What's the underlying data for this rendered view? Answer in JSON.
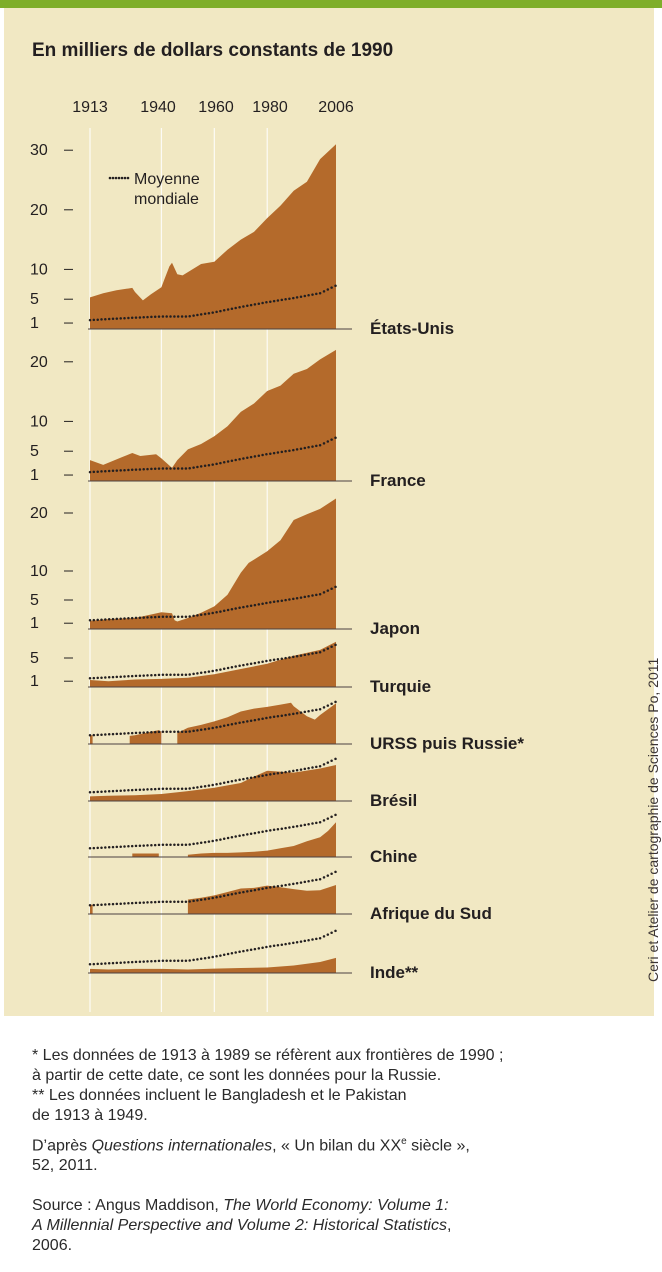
{
  "subtitle": "En milliers de dollars constants de 1990",
  "credit": "Ceri et Atelier de cartographie de Sciences Po, 2011",
  "notes": {
    "footnote1_l1": "* Les données de 1913 à 1989 se réfèrent aux frontières de 1990 ;",
    "footnote1_l2": "à partir de cette date, ce sont les données pour la Russie.",
    "footnote2_l1": "** Les données incluent le Bangladesh et le Pakistan",
    "footnote2_l2": "de 1913 à 1949.",
    "source1_a": "D’après ",
    "source1_title": "Questions internationales",
    "source1_b": ", « Un bilan du XX",
    "source1_sup": "e",
    "source1_c": " siècle »,",
    "source1_l2": "52, 2011.",
    "source2_a": "Source : Angus Maddison, ",
    "source2_title_l1": "The World Economy: Volume 1:",
    "source2_title_l2": "A Millennial Perspective and Volume 2: Historical Statistics",
    "source2_c": ",",
    "source2_l3": "2006."
  },
  "colors": {
    "area": "#b46a2b",
    "panel": "#f1e8c3",
    "accent_bar": "#7fae2a",
    "world_dots": "#231f20"
  },
  "chart_data": {
    "type": "area",
    "unit": "En milliers de dollars constants de 1990",
    "x_tick_labels": [
      "1913",
      "1940",
      "1960",
      "1980",
      "2006"
    ],
    "x_range": [
      1913,
      2006
    ],
    "world_average_label": "Moyenne mondiale",
    "world_average": {
      "x": [
        1913,
        1930,
        1940,
        1950,
        1960,
        1970,
        1980,
        1990,
        2000,
        2006
      ],
      "y": [
        1.5,
        1.9,
        2.1,
        2.1,
        2.8,
        3.7,
        4.5,
        5.2,
        6.0,
        7.3
      ]
    },
    "panels": [
      {
        "name": "États-Unis",
        "y_ticks": [
          1,
          5,
          10,
          20,
          30
        ],
        "series": [
          {
            "x": [
              1913,
              1918,
              1923,
              1929,
              1930,
              1933,
              1936,
              1940,
              1941,
              1943,
              1944,
              1946,
              1948,
              1955,
              1960,
              1965,
              1970,
              1975,
              1980,
              1985,
              1990,
              1995,
              2000,
              2006
            ],
            "y": [
              5.3,
              6.0,
              6.5,
              6.9,
              6.2,
              4.8,
              5.8,
              7.0,
              8.2,
              10.5,
              11.1,
              9.2,
              9.0,
              10.9,
              11.3,
              13.3,
              15.0,
              16.3,
              18.6,
              20.7,
              23.2,
              24.7,
              28.5,
              31.0
            ]
          }
        ]
      },
      {
        "name": "France",
        "y_ticks": [
          1,
          5,
          10,
          20
        ],
        "series": [
          {
            "x": [
              1913,
              1918,
              1925,
              1929,
              1932,
              1938,
              1940,
              1944,
              1946,
              1950,
              1955,
              1960,
              1965,
              1970,
              1975,
              1980,
              1985,
              1990,
              1995,
              2000,
              2006
            ],
            "y": [
              3.5,
              2.7,
              4.0,
              4.7,
              4.2,
              4.5,
              3.8,
              2.2,
              3.5,
              5.3,
              6.2,
              7.5,
              9.2,
              11.6,
              13.0,
              15.1,
              16.0,
              18.0,
              18.8,
              20.4,
              22.0
            ]
          }
        ]
      },
      {
        "name": "Japon",
        "y_ticks": [
          1,
          5,
          10,
          20
        ],
        "series": [
          {
            "x": [
              1913,
              1920,
              1930,
              1940,
              1944,
              1945,
              1946,
              1950,
              1955,
              1960,
              1965,
              1970,
              1973,
              1980,
              1985,
              1990,
              1995,
              2000,
              2006
            ],
            "y": [
              1.4,
              1.7,
              1.9,
              2.9,
              2.7,
              1.5,
              1.3,
              1.9,
              2.8,
              3.9,
              5.9,
              9.7,
              11.4,
              13.4,
              15.3,
              18.8,
              19.8,
              20.7,
              22.5
            ]
          }
        ]
      },
      {
        "name": "Turquie",
        "y_ticks": [
          1,
          5
        ],
        "series": [
          {
            "x": [
              1913,
              1920,
              1930,
              1940,
              1950,
              1960,
              1970,
              1980,
              1990,
              2000,
              2006
            ],
            "y": [
              1.2,
              1.0,
              1.3,
              1.4,
              1.6,
              2.2,
              3.1,
              4.0,
              5.4,
              6.4,
              7.8
            ]
          }
        ]
      },
      {
        "name": "URSS puis Russie*",
        "y_ticks": [],
        "series": [
          {
            "x": [
              1913,
              1914
            ],
            "y": [
              1.5,
              1.5
            ]
          },
          {
            "x": [
              1928,
              1930,
              1935,
              1939,
              1940
            ],
            "y": [
              1.4,
              1.5,
              2.0,
              2.4,
              2.1
            ]
          },
          {
            "x": [
              1946,
              1950,
              1955,
              1960,
              1965,
              1970,
              1975,
              1980,
              1985,
              1989,
              1990,
              1995,
              1998,
              2000,
              2006
            ],
            "y": [
              1.9,
              2.8,
              3.3,
              3.9,
              4.6,
              5.6,
              6.1,
              6.4,
              6.8,
              7.1,
              6.5,
              4.8,
              4.2,
              5.0,
              7.0
            ]
          }
        ]
      },
      {
        "name": "Brésil",
        "y_ticks": [],
        "series": [
          {
            "x": [
              1913,
              1920,
              1930,
              1940,
              1950,
              1960,
              1970,
              1975,
              1980,
              1990,
              2000,
              2006
            ],
            "y": [
              0.8,
              0.9,
              1.0,
              1.2,
              1.7,
              2.3,
              3.1,
              4.2,
              5.2,
              4.9,
              5.6,
              6.2
            ]
          }
        ]
      },
      {
        "name": "Chine",
        "y_ticks": [],
        "series": [
          {
            "x": [
              1929,
              1930,
              1938,
              1939
            ],
            "y": [
              0.6,
              0.6,
              0.6,
              0.6
            ]
          },
          {
            "x": [
              1950,
              1955,
              1960,
              1965,
              1970,
              1975,
              1980,
              1985,
              1990,
              1995,
              2000,
              2003,
              2006
            ],
            "y": [
              0.4,
              0.6,
              0.7,
              0.7,
              0.8,
              0.9,
              1.1,
              1.5,
              1.9,
              2.7,
              3.4,
              4.5,
              6.0
            ]
          }
        ]
      },
      {
        "name": "Afrique du Sud",
        "y_ticks": [],
        "series": [
          {
            "x": [
              1913,
              1914
            ],
            "y": [
              1.6,
              1.6
            ]
          },
          {
            "x": [
              1950,
              1955,
              1960,
              1965,
              1970,
              1975,
              1980,
              1985,
              1990,
              1995,
              2000,
              2006
            ],
            "y": [
              2.5,
              2.8,
              3.2,
              3.8,
              4.4,
              4.5,
              4.9,
              4.6,
              4.3,
              4.0,
              4.1,
              5.0
            ]
          }
        ]
      },
      {
        "name": "Inde**",
        "y_ticks": [],
        "series": [
          {
            "x": [
              1913,
              1920,
              1930,
              1940,
              1950,
              1960,
              1970,
              1980,
              1990,
              2000,
              2006
            ],
            "y": [
              0.7,
              0.6,
              0.7,
              0.7,
              0.6,
              0.75,
              0.87,
              0.94,
              1.3,
              1.9,
              2.6
            ]
          }
        ]
      }
    ]
  }
}
